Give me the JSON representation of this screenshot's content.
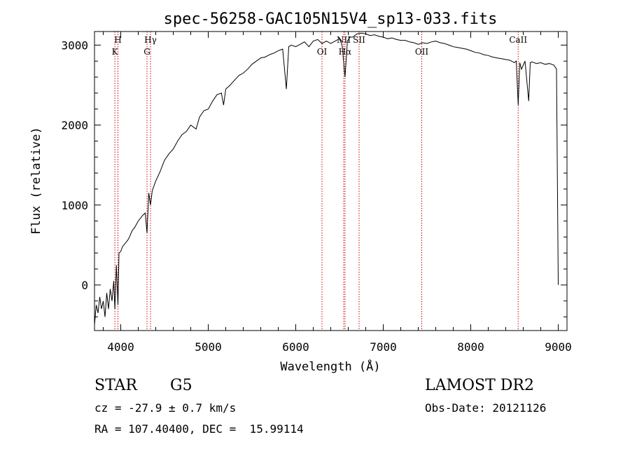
{
  "chart_data": {
    "type": "line",
    "title": "spec-56258-GAC105N15V4_sp13-033.fits",
    "xlabel": "Wavelength (Å)",
    "ylabel": "Flux (relative)",
    "xlim": [
      3700,
      9100
    ],
    "ylim": [
      -570,
      3170
    ],
    "xticks": [
      4000,
      5000,
      6000,
      7000,
      8000,
      9000
    ],
    "xtick_labels": [
      "4000",
      "5000",
      "6000",
      "7000",
      "8000",
      "9000"
    ],
    "yticks": [
      0,
      1000,
      2000,
      3000
    ],
    "ytick_labels": [
      "0",
      "1000",
      "2000",
      "3000"
    ],
    "grid": false,
    "line_color": "#000000",
    "marker_color": "#cc0000",
    "series": [
      {
        "x": [
          3700,
          3720,
          3740,
          3760,
          3780,
          3800,
          3820,
          3840,
          3860,
          3880,
          3900,
          3920,
          3933,
          3950,
          3968,
          3980,
          4000,
          4020,
          4050,
          4080,
          4100,
          4130,
          4160,
          4200,
          4250,
          4280,
          4300,
          4320,
          4340,
          4360,
          4400,
          4450,
          4500,
          4550,
          4600,
          4650,
          4700,
          4750,
          4800,
          4861,
          4900,
          4950,
          5000,
          5050,
          5100,
          5150,
          5175,
          5200,
          5250,
          5300,
          5350,
          5400,
          5450,
          5500,
          5550,
          5600,
          5650,
          5700,
          5750,
          5800,
          5850,
          5893,
          5920,
          5950,
          6000,
          6050,
          6100,
          6150,
          6200,
          6250,
          6300,
          6350,
          6400,
          6450,
          6500,
          6530,
          6563,
          6590,
          6620,
          6650,
          6700,
          6750,
          6800,
          6850,
          6900,
          6950,
          7000,
          7050,
          7100,
          7150,
          7200,
          7250,
          7300,
          7350,
          7400,
          7450,
          7500,
          7550,
          7600,
          7650,
          7700,
          7750,
          7800,
          7850,
          7900,
          7950,
          8000,
          8050,
          8100,
          8150,
          8200,
          8250,
          8300,
          8350,
          8400,
          8450,
          8498,
          8520,
          8542,
          8560,
          8580,
          8600,
          8620,
          8662,
          8680,
          8700,
          8750,
          8800,
          8850,
          8900,
          8950,
          8980,
          9000
        ],
        "y": [
          -500,
          -250,
          -350,
          -150,
          -300,
          -200,
          -400,
          -100,
          -300,
          -50,
          -200,
          50,
          -300,
          250,
          -250,
          400,
          420,
          480,
          520,
          560,
          600,
          680,
          720,
          800,
          870,
          900,
          650,
          1150,
          1000,
          1180,
          1300,
          1420,
          1560,
          1640,
          1700,
          1800,
          1880,
          1920,
          2000,
          1950,
          2100,
          2180,
          2200,
          2300,
          2380,
          2400,
          2250,
          2450,
          2500,
          2560,
          2620,
          2650,
          2700,
          2760,
          2800,
          2840,
          2850,
          2880,
          2900,
          2930,
          2950,
          2450,
          2980,
          3000,
          2980,
          3010,
          3040,
          2980,
          3050,
          3070,
          3020,
          3050,
          3020,
          3050,
          3080,
          3000,
          2600,
          3050,
          3100,
          3100,
          3140,
          3150,
          3140,
          3120,
          3130,
          3110,
          3100,
          3080,
          3090,
          3070,
          3060,
          3060,
          3040,
          3030,
          3010,
          3030,
          3020,
          3040,
          3050,
          3030,
          3020,
          3000,
          2980,
          2970,
          2960,
          2950,
          2930,
          2910,
          2900,
          2880,
          2870,
          2850,
          2840,
          2830,
          2820,
          2810,
          2780,
          2800,
          2250,
          2780,
          2700,
          2750,
          2800,
          2300,
          2780,
          2790,
          2770,
          2780,
          2760,
          2770,
          2750,
          2700,
          0
        ]
      }
    ],
    "lines": [
      {
        "x": 3933,
        "label": "K"
      },
      {
        "x": 3968,
        "label": "H"
      },
      {
        "x": 4300,
        "label": "G"
      },
      {
        "x": 4340,
        "label": "Hγ"
      },
      {
        "x": 6300,
        "label": "OI"
      },
      {
        "x": 6548,
        "label": "NII"
      },
      {
        "x": 6563,
        "label": "Hα"
      },
      {
        "x": 6724,
        "label": "SII"
      },
      {
        "x": 7440,
        "label": "OII"
      },
      {
        "x": 8542,
        "label": "CaII"
      }
    ]
  },
  "info": {
    "object_class": "STAR",
    "subclass": "G5",
    "survey": "LAMOST DR2",
    "cz": "cz = -27.9 ± 0.7 km/s",
    "obs_date": "Obs-Date: 20121126",
    "coords": "RA = 107.40400, DEC =  15.99114"
  }
}
